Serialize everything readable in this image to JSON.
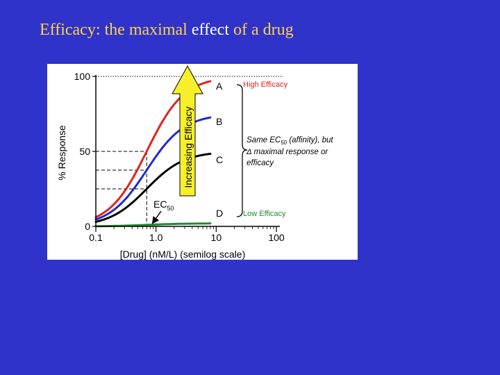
{
  "slide": {
    "title_part1": "Efficacy: the maximal ",
    "title_highlight": "effect",
    "title_part2": " of a drug",
    "title_color": "#ffd24a",
    "highlight_color": "#ffffff",
    "background": "#2f33c9"
  },
  "chart_data": {
    "type": "line",
    "xscale": "log",
    "xlim": [
      0.1,
      100
    ],
    "ylim": [
      0,
      100
    ],
    "xticks": [
      "0.1",
      "1.0",
      "10",
      "100"
    ],
    "yticks": [
      "0",
      "50",
      "100"
    ],
    "xlabel": "[Drug] (nM/L) (semilog scale)",
    "ylabel": "% Response",
    "ec50": 0.7,
    "series": [
      {
        "name": "A",
        "max": 100,
        "color": "#e0231c"
      },
      {
        "name": "B",
        "max": 75,
        "color": "#1f2ad1"
      },
      {
        "name": "C",
        "max": 50,
        "color": "#000000"
      },
      {
        "name": "D",
        "max": 2,
        "color": "#1e8a32"
      }
    ],
    "ec50_label": "EC",
    "ec50_sub": "50",
    "arrow_label": "Increasing Efficacy",
    "arrow_color": "#f7ef2a",
    "high_label": "High Efficacy",
    "low_label": "Low Efficacy",
    "annotation_line1_a": "Same EC",
    "annotation_line1_sub": "50",
    "annotation_line1_b": " (affinity), but",
    "annotation_line2": "Δ maximal response or",
    "annotation_line3": "efficacy"
  }
}
